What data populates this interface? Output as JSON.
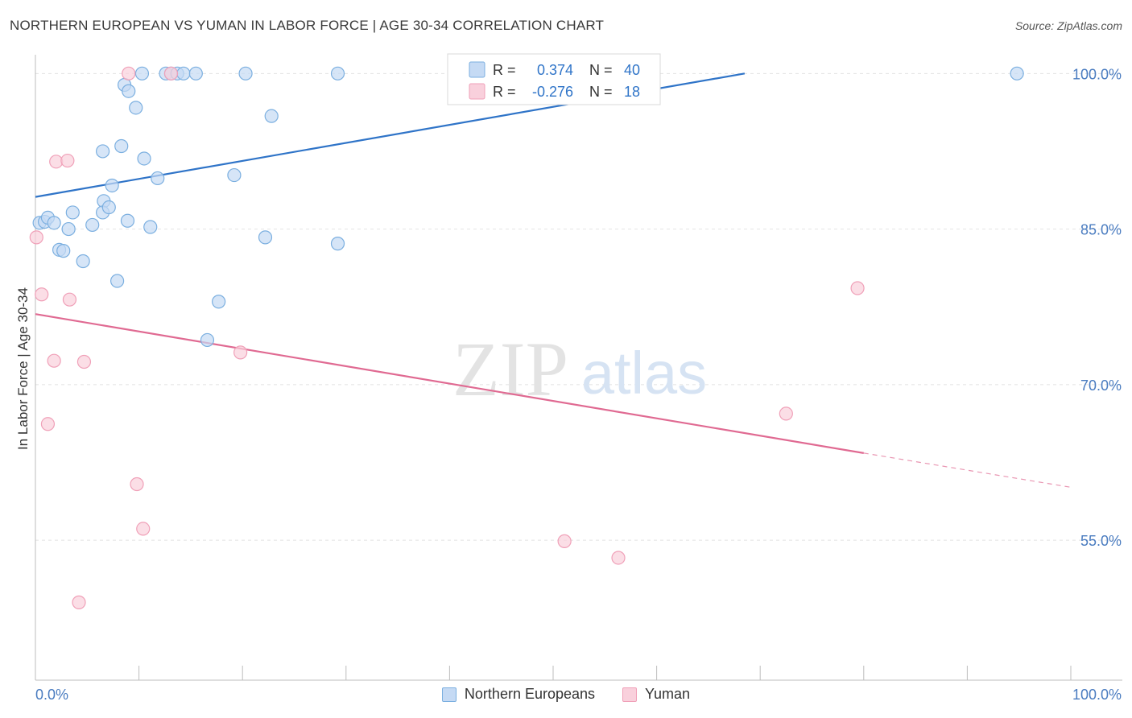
{
  "header": {
    "title": "NORTHERN EUROPEAN VS YUMAN IN LABOR FORCE | AGE 30-34 CORRELATION CHART",
    "source": "Source: ZipAtlas.com"
  },
  "watermark": {
    "zip": "ZIP",
    "atlas": "atlas"
  },
  "chart_data": {
    "type": "scatter",
    "title": "NORTHERN EUROPEAN VS YUMAN IN LABOR FORCE | AGE 30-34 CORRELATION CHART",
    "xlabel": "",
    "ylabel": "In Labor Force | Age 30-34",
    "xlim": [
      0,
      100
    ],
    "ylim": [
      41.5,
      101.5
    ],
    "x_tick_labels": [
      {
        "value": 0,
        "label": "0.0%"
      },
      {
        "value": 100,
        "label": "100.0%"
      }
    ],
    "y_tick_labels": [
      {
        "value": 55,
        "label": "55.0%"
      },
      {
        "value": 70,
        "label": "70.0%"
      },
      {
        "value": 85,
        "label": "85.0%"
      },
      {
        "value": 100,
        "label": "100.0%"
      }
    ],
    "grid": true,
    "legend_position": "top-center",
    "series": [
      {
        "name": "Northern Europeans",
        "color": "#7bafe0",
        "fill": "#c5daf4",
        "line_color": "#2f74c8",
        "R": "0.374",
        "N": "40",
        "trend": {
          "x0": 0,
          "y0": 88.1,
          "x1": 68.5,
          "y1": 100.0
        },
        "points": [
          [
            0.4,
            85.6
          ],
          [
            0.9,
            85.7
          ],
          [
            1.2,
            86.1
          ],
          [
            1.8,
            85.6
          ],
          [
            2.3,
            83.0
          ],
          [
            2.7,
            82.9
          ],
          [
            3.2,
            85.0
          ],
          [
            3.6,
            86.6
          ],
          [
            4.6,
            81.9
          ],
          [
            6.6,
            87.7
          ],
          [
            6.5,
            86.6
          ],
          [
            7.1,
            87.1
          ],
          [
            5.5,
            85.4
          ],
          [
            7.4,
            89.2
          ],
          [
            6.5,
            92.5
          ],
          [
            7.9,
            80.0
          ],
          [
            8.3,
            93.0
          ],
          [
            8.9,
            85.8
          ],
          [
            8.6,
            98.9
          ],
          [
            9.0,
            98.3
          ],
          [
            9.7,
            96.7
          ],
          [
            10.5,
            91.8
          ],
          [
            11.1,
            85.2
          ],
          [
            11.8,
            89.9
          ],
          [
            10.3,
            100.0
          ],
          [
            12.6,
            100.0
          ],
          [
            13.1,
            100.0
          ],
          [
            13.7,
            100.0
          ],
          [
            14.3,
            100.0
          ],
          [
            15.5,
            100.0
          ],
          [
            16.6,
            74.3
          ],
          [
            17.7,
            78.0
          ],
          [
            19.2,
            90.2
          ],
          [
            20.3,
            100.0
          ],
          [
            22.2,
            84.2
          ],
          [
            22.8,
            95.9
          ],
          [
            29.2,
            83.6
          ],
          [
            29.2,
            100.0
          ],
          [
            41.0,
            100.0
          ],
          [
            94.8,
            100.0
          ]
        ]
      },
      {
        "name": "Yuman",
        "color": "#f0a0b8",
        "fill": "#f9d0dc",
        "line_color": "#e06a92",
        "R": "-0.276",
        "N": "18",
        "trend": {
          "x0": 0,
          "y0": 76.8,
          "x1": 80.0,
          "y1": 63.4
        },
        "trend_dashed": {
          "x0": 80.0,
          "y0": 63.4,
          "x1": 100,
          "y1": 60.1
        },
        "points": [
          [
            0.6,
            78.7
          ],
          [
            1.2,
            66.2
          ],
          [
            1.8,
            72.3
          ],
          [
            2.0,
            91.5
          ],
          [
            3.1,
            91.6
          ],
          [
            3.3,
            78.2
          ],
          [
            4.2,
            49.0
          ],
          [
            4.7,
            72.2
          ],
          [
            9.0,
            100.0
          ],
          [
            9.8,
            60.4
          ],
          [
            10.4,
            56.1
          ],
          [
            13.1,
            100.0
          ],
          [
            19.8,
            73.1
          ],
          [
            51.1,
            54.9
          ],
          [
            56.3,
            53.3
          ],
          [
            72.5,
            67.2
          ],
          [
            79.4,
            79.3
          ],
          [
            0.1,
            84.2
          ]
        ]
      }
    ]
  }
}
